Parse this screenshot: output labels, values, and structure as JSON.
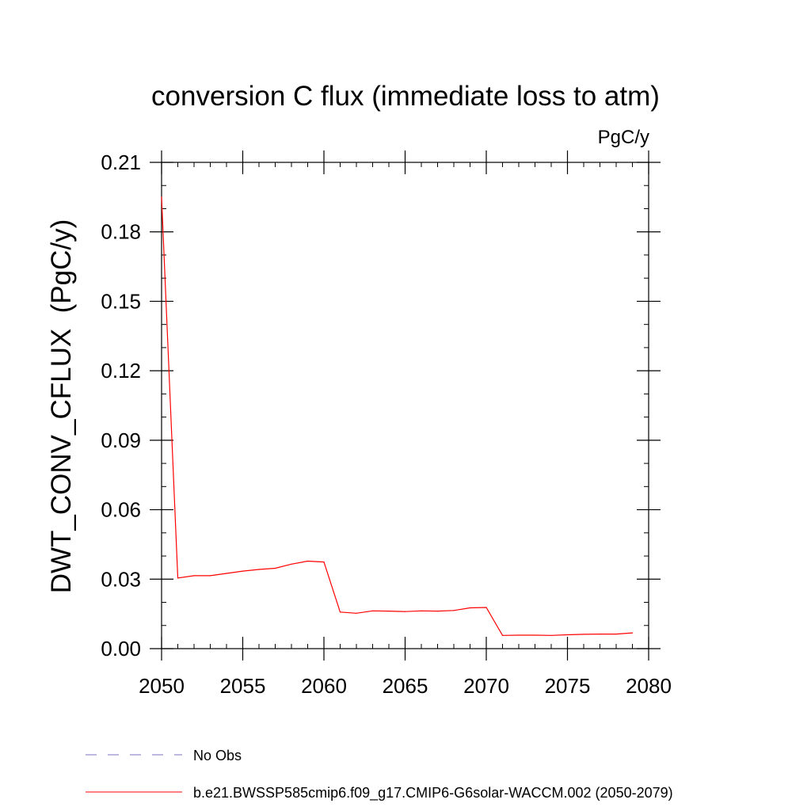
{
  "chart_data": {
    "type": "line",
    "title": "conversion C flux (immediate loss to atm)",
    "units": "PgC/y",
    "xlabel": "",
    "ylabel": "DWT_CONV_CFLUX  (PgC/y)",
    "xlim": [
      2050,
      2080
    ],
    "ylim": [
      0,
      0.21
    ],
    "x_ticks": [
      2050,
      2055,
      2060,
      2065,
      2070,
      2075,
      2080
    ],
    "y_ticks": [
      0.0,
      0.03,
      0.06,
      0.09,
      0.12,
      0.15,
      0.18,
      0.21
    ],
    "y_tick_labels": [
      "0.00",
      "0.03",
      "0.06",
      "0.09",
      "0.12",
      "0.15",
      "0.18",
      "0.21"
    ],
    "grid": false,
    "series": [
      {
        "name": "b.e21.BWSSP585cmip6.f09_g17.CMIP6-G6solar-WACCM.002 (2050-2079)",
        "color": "#ff0000",
        "style": "solid",
        "x": [
          2050,
          2051,
          2052,
          2053,
          2054,
          2055,
          2056,
          2057,
          2058,
          2059,
          2060,
          2061,
          2062,
          2063,
          2064,
          2065,
          2066,
          2067,
          2068,
          2069,
          2070,
          2071,
          2072,
          2073,
          2074,
          2075,
          2076,
          2077,
          2078,
          2079
        ],
        "values": [
          0.195,
          0.0305,
          0.0315,
          0.0315,
          0.0325,
          0.0335,
          0.0342,
          0.0347,
          0.0365,
          0.0378,
          0.0374,
          0.0158,
          0.0153,
          0.0163,
          0.0162,
          0.016,
          0.0163,
          0.0162,
          0.0165,
          0.0176,
          0.0178,
          0.0057,
          0.0058,
          0.0058,
          0.0057,
          0.006,
          0.0062,
          0.0063,
          0.0063,
          0.0068
        ]
      }
    ],
    "legend": [
      {
        "label": "No Obs",
        "color": "#7b6fc6",
        "style": "dashed"
      },
      {
        "label": "b.e21.BWSSP585cmip6.f09_g17.CMIP6-G6solar-WACCM.002 (2050-2079)",
        "color": "#ff0000",
        "style": "solid"
      }
    ],
    "legend_position": "bottom"
  }
}
